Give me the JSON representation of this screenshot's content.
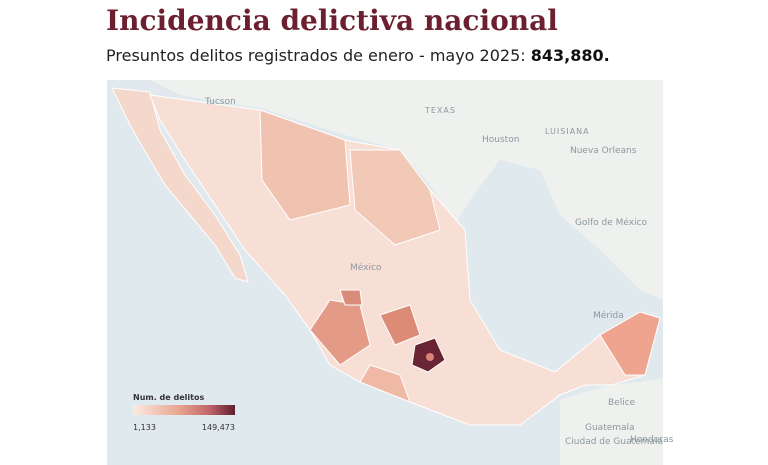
{
  "header": {
    "title": "Incidencia delictiva nacional",
    "subtitle": "Presuntos delitos registrados de enero - mayo 2025:",
    "total": "843,880."
  },
  "legend": {
    "title": "Num. de delitos",
    "min_label": "1,133",
    "max_label": "149,473"
  },
  "basemap_labels": [
    "Tucson",
    "TEXAS",
    "Houston",
    "LUISIANA",
    "Nueva Orleans",
    "Golfo de México",
    "México",
    "Mérida",
    "Belice",
    "Guatemala",
    "Ciudad de Guatemala",
    "Honduras"
  ]
}
